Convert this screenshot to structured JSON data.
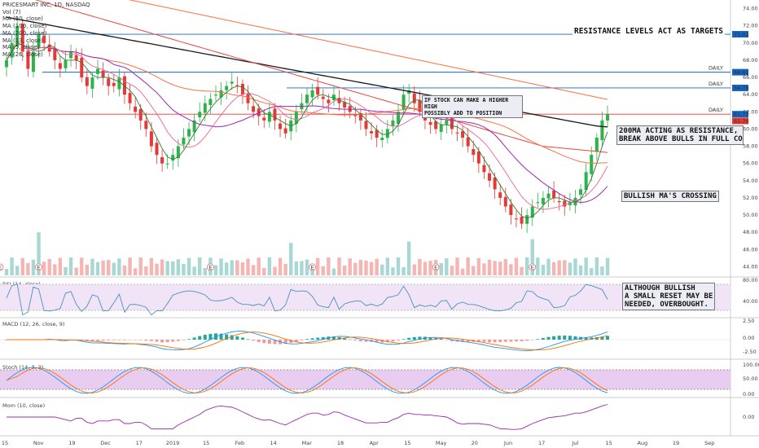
{
  "header": {
    "symbol_line": "PRICESMART INC, 1D, NASDAQ",
    "indicators": [
      "Vol (7)",
      "MA (50, close)",
      "MA (100, close)",
      "MA (200, close)",
      "MA (13, close)",
      "MA (5, close)",
      "MA (26, close)"
    ]
  },
  "notes": {
    "resistance_targets": "RESISTANCE LEVELS ACT AS TARGETS",
    "higher_high": [
      "IF STOCK CAN MAKE A HIGHER HIGH",
      "POSSIBLY ADD TO POSITION"
    ],
    "ma200": [
      "200MA ACTING AS RESISTANCE,",
      "BREAK ABOVE BULLS IN FULL CONTROL"
    ],
    "bullish_cross": "BULLISH MA'S CROSSING",
    "overbought": [
      "ALTHOUGH BULLISH",
      "A SMALL RESET MAY BE",
      "NEEDED, OVERBOUGHT."
    ]
  },
  "panels": {
    "rsi": "RSI (14, close)",
    "macd": "MACD (12, 26, close, 9)",
    "stoch": "Stoch (14, 3, 3)",
    "mom": "Mom (10, close)"
  },
  "colors": {
    "up": "#26a69a",
    "down": "#ef5350",
    "bull_candle": "#2db34a",
    "bear_candle": "#e53935",
    "ma200": "#1a1a1a",
    "ma100": "#e8463a",
    "ma50": "#ff7043",
    "ma26": "#9c27b0",
    "ma13": "#f06292",
    "ma5": "#2e7d32",
    "level_line": "#1565c0",
    "price_line": "#e53935",
    "rsi": "#4a90c2",
    "mom": "#9c27b0"
  },
  "chart_data": {
    "type": "candlestick",
    "price_axis": {
      "ticks": [
        "74.00",
        "72.00",
        "70.00",
        "68.00",
        "66.00",
        "64.00",
        "62.00",
        "60.00",
        "58.00",
        "56.00",
        "54.00",
        "52.00",
        "50.00",
        "48.00",
        "46.00",
        "44.00"
      ],
      "min": 43,
      "max": 75
    },
    "levels": [
      {
        "label": "DAILY",
        "value": 71.02,
        "badge": "71.02"
      },
      {
        "label": "DAILY",
        "value": 66.61,
        "badge": "66.61"
      },
      {
        "label": "DAILY",
        "value": 64.78,
        "badge": "64.78"
      },
      {
        "label": "DAILY",
        "value": 61.73,
        "badge": "61.73"
      }
    ],
    "last_price": "61.70",
    "time_axis": [
      "15",
      "Nov",
      "19",
      "Dec",
      "17",
      "2019",
      "15",
      "Feb",
      "14",
      "Mar",
      "18",
      "Apr",
      "15",
      "May",
      "20",
      "Jun",
      "17",
      "Jul",
      "15",
      "Aug",
      "19",
      "Sep"
    ],
    "closes": [
      68,
      70,
      72,
      69,
      67,
      69,
      71,
      70,
      69,
      68,
      67,
      68,
      69,
      68,
      66,
      65,
      66,
      67,
      66,
      65,
      65,
      66,
      64,
      63,
      62,
      61,
      60,
      58,
      57,
      56,
      56,
      57,
      58,
      59,
      60,
      61,
      62,
      63,
      63.5,
      64,
      64.5,
      65,
      65.5,
      65,
      64,
      63,
      62,
      61.5,
      61,
      62,
      61,
      60,
      59.5,
      61,
      62,
      63,
      64,
      64.5,
      64,
      63.5,
      63,
      64,
      63,
      62.5,
      62,
      61.5,
      61,
      60,
      59.5,
      59,
      59,
      60,
      61,
      62,
      64,
      64.5,
      63,
      62,
      61,
      60.5,
      60,
      60.5,
      61,
      60,
      59.5,
      59,
      58,
      57,
      56,
      55,
      54,
      53,
      52,
      51,
      50,
      49.5,
      49,
      50,
      51,
      51.5,
      52,
      52.5,
      52,
      51.5,
      51,
      51.5,
      52,
      53,
      55,
      57,
      59,
      61,
      61.7
    ],
    "rsi_levels": {
      "ticks": [
        "80.00",
        "40.00"
      ]
    },
    "macd_levels": {
      "ticks": [
        "2.50",
        "0.00",
        "-2.50"
      ]
    },
    "stoch_levels": {
      "ticks": [
        "100.00",
        "50.00",
        "0.00"
      ]
    },
    "mom_levels": {
      "ticks": [
        "0.00"
      ]
    }
  }
}
